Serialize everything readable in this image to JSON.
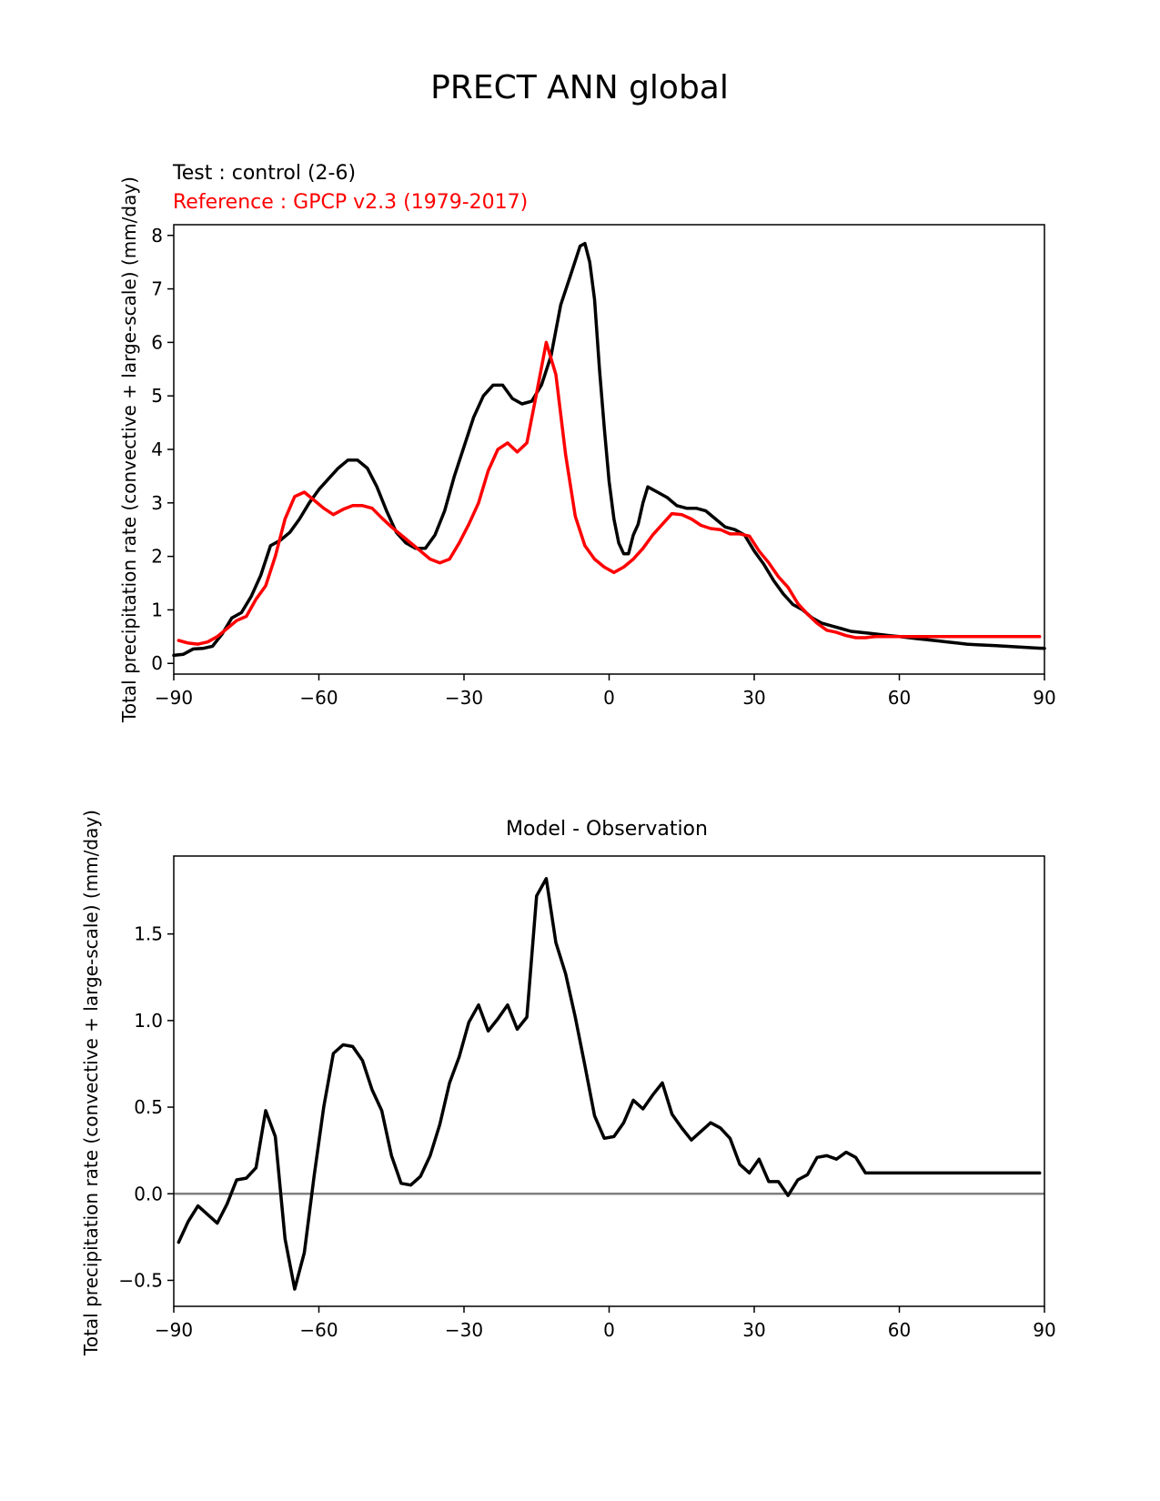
{
  "title": "PRECT ANN global",
  "colors": {
    "test": "#000000",
    "reference": "#ff0000",
    "zero_line": "#808080"
  },
  "chart_data": [
    {
      "type": "line",
      "subtitle_test": "Test : control (2-6)",
      "subtitle_reference": "Reference : GPCP v2.3 (1979-2017)",
      "xlabel": "",
      "ylabel": "Total precipitation rate (convective + large-scale) (mm/day)",
      "xlim": [
        -90,
        90
      ],
      "ylim": [
        -0.2,
        8.2
      ],
      "xticks": [
        -90,
        -60,
        -30,
        0,
        30,
        60,
        90
      ],
      "xtick_labels": [
        "−90",
        "−60",
        "−30",
        "0",
        "30",
        "60",
        "90"
      ],
      "yticks": [
        0,
        1,
        2,
        3,
        4,
        5,
        6,
        7,
        8
      ],
      "ytick_labels": [
        "0",
        "1",
        "2",
        "3",
        "4",
        "5",
        "6",
        "7",
        "8"
      ],
      "grid": false,
      "series": [
        {
          "name": "Test : control (2-6)",
          "color": "#000000",
          "x": [
            -90,
            -88,
            -86,
            -84,
            -82,
            -80,
            -78,
            -76,
            -74,
            -72,
            -70,
            -68,
            -66,
            -64,
            -62,
            -60,
            -58,
            -56,
            -54,
            -52,
            -50,
            -48,
            -46,
            -44,
            -42,
            -40,
            -38,
            -36,
            -34,
            -32,
            -30,
            -28,
            -26,
            -24,
            -22,
            -20,
            -18,
            -16,
            -14,
            -12,
            -10,
            -8,
            -6,
            -5,
            -4,
            -3,
            -2,
            -1,
            0,
            1,
            2,
            3,
            4,
            5,
            6,
            7,
            8,
            10,
            12,
            14,
            16,
            18,
            20,
            22,
            24,
            26,
            28,
            30,
            32,
            34,
            36,
            38,
            40,
            42,
            44,
            46,
            48,
            50,
            52,
            54,
            56,
            58,
            60,
            62,
            64,
            66,
            68,
            70,
            72,
            74,
            76,
            78,
            80,
            82,
            84,
            86,
            88,
            90
          ],
          "y": [
            0.15,
            0.17,
            0.27,
            0.28,
            0.32,
            0.55,
            0.85,
            0.95,
            1.25,
            1.65,
            2.2,
            2.3,
            2.45,
            2.7,
            3.0,
            3.25,
            3.45,
            3.65,
            3.8,
            3.8,
            3.65,
            3.3,
            2.85,
            2.45,
            2.25,
            2.15,
            2.15,
            2.4,
            2.85,
            3.5,
            4.05,
            4.6,
            5.0,
            5.2,
            5.2,
            4.95,
            4.85,
            4.9,
            5.2,
            5.75,
            6.7,
            7.25,
            7.8,
            7.85,
            7.5,
            6.8,
            5.5,
            4.4,
            3.4,
            2.7,
            2.25,
            2.05,
            2.05,
            2.4,
            2.6,
            3.0,
            3.3,
            3.2,
            3.1,
            2.95,
            2.9,
            2.9,
            2.85,
            2.7,
            2.55,
            2.5,
            2.4,
            2.1,
            1.85,
            1.55,
            1.3,
            1.1,
            1.0,
            0.85,
            0.75,
            0.7,
            0.65,
            0.6,
            0.58,
            0.56,
            0.54,
            0.52,
            0.5,
            0.48,
            0.46,
            0.44,
            0.42,
            0.4,
            0.38,
            0.36,
            0.35,
            0.34,
            0.33,
            0.32,
            0.31,
            0.3,
            0.29,
            0.28
          ]
        },
        {
          "name": "Reference : GPCP v2.3 (1979-2017)",
          "color": "#ff0000",
          "x": [
            -89,
            -87,
            -85,
            -83,
            -81,
            -79,
            -77,
            -75,
            -73,
            -71,
            -69,
            -67,
            -65,
            -63,
            -61,
            -59,
            -57,
            -55,
            -53,
            -51,
            -49,
            -47,
            -45,
            -43,
            -41,
            -39,
            -37,
            -35,
            -33,
            -31,
            -29,
            -27,
            -25,
            -23,
            -21,
            -19,
            -17,
            -15,
            -13,
            -11,
            -9,
            -7,
            -5,
            -3,
            -1,
            1,
            3,
            5,
            7,
            9,
            11,
            13,
            15,
            17,
            19,
            21,
            23,
            25,
            27,
            29,
            31,
            33,
            35,
            37,
            39,
            41,
            43,
            45,
            47,
            49,
            51,
            53,
            55,
            57,
            59,
            61,
            63,
            65,
            67,
            69,
            71,
            73,
            75,
            77,
            79,
            81,
            83,
            85,
            87,
            89
          ],
          "y": [
            0.43,
            0.38,
            0.36,
            0.4,
            0.5,
            0.65,
            0.8,
            0.88,
            1.2,
            1.45,
            2.0,
            2.7,
            3.12,
            3.2,
            3.05,
            2.9,
            2.78,
            2.88,
            2.95,
            2.95,
            2.9,
            2.72,
            2.55,
            2.4,
            2.25,
            2.1,
            1.95,
            1.88,
            1.95,
            2.25,
            2.6,
            3.0,
            3.6,
            4.0,
            4.12,
            3.95,
            4.12,
            5.05,
            6.0,
            5.4,
            3.9,
            2.75,
            2.2,
            1.95,
            1.8,
            1.7,
            1.8,
            1.95,
            2.15,
            2.4,
            2.6,
            2.8,
            2.78,
            2.7,
            2.58,
            2.52,
            2.5,
            2.42,
            2.42,
            2.38,
            2.1,
            1.88,
            1.62,
            1.42,
            1.12,
            0.92,
            0.75,
            0.62,
            0.58,
            0.52,
            0.48,
            0.48,
            0.5,
            0.5,
            0.5,
            0.5,
            0.5,
            0.5,
            0.5,
            0.5,
            0.5,
            0.5,
            0.5,
            0.5,
            0.5,
            0.5,
            0.5,
            0.5,
            0.5,
            0.5
          ]
        }
      ]
    },
    {
      "type": "line",
      "title": "Model - Observation",
      "xlabel": "",
      "ylabel": "Total precipitation rate (convective + large-scale) (mm/day)",
      "xlim": [
        -90,
        90
      ],
      "ylim": [
        -0.65,
        1.95
      ],
      "xticks": [
        -90,
        -60,
        -30,
        0,
        30,
        60,
        90
      ],
      "xtick_labels": [
        "−90",
        "−60",
        "−30",
        "0",
        "30",
        "60",
        "90"
      ],
      "yticks": [
        -0.5,
        0.0,
        0.5,
        1.0,
        1.5
      ],
      "ytick_labels": [
        "−0.5",
        "0.0",
        "0.5",
        "1.0",
        "1.5"
      ],
      "zero_line": 0,
      "grid": false,
      "series": [
        {
          "color": "#000000",
          "x": [
            -89,
            -87,
            -85,
            -83,
            -81,
            -79,
            -77,
            -75,
            -73,
            -71,
            -69,
            -67,
            -65,
            -63,
            -61,
            -59,
            -57,
            -55,
            -53,
            -51,
            -49,
            -47,
            -45,
            -43,
            -41,
            -39,
            -37,
            -35,
            -33,
            -31,
            -29,
            -27,
            -25,
            -23,
            -21,
            -19,
            -17,
            -15,
            -13,
            -11,
            -9,
            -7,
            -5,
            -3,
            -1,
            1,
            3,
            5,
            7,
            9,
            11,
            13,
            15,
            17,
            19,
            21,
            23,
            25,
            27,
            29,
            31,
            33,
            35,
            37,
            39,
            41,
            43,
            45,
            47,
            49,
            51,
            53,
            55,
            57,
            59,
            61,
            63,
            65,
            67,
            69,
            71,
            73,
            75,
            77,
            79,
            81,
            83,
            85,
            87,
            89
          ],
          "y": [
            -0.28,
            -0.16,
            -0.07,
            -0.12,
            -0.17,
            -0.06,
            0.08,
            0.09,
            0.15,
            0.48,
            0.33,
            -0.26,
            -0.55,
            -0.34,
            0.1,
            0.5,
            0.81,
            0.86,
            0.85,
            0.77,
            0.6,
            0.48,
            0.22,
            0.06,
            0.05,
            0.1,
            0.22,
            0.4,
            0.64,
            0.79,
            0.99,
            1.09,
            0.94,
            1.01,
            1.09,
            0.95,
            1.02,
            1.72,
            1.82,
            1.45,
            1.27,
            1.02,
            0.74,
            0.45,
            0.32,
            0.33,
            0.41,
            0.54,
            0.49,
            0.57,
            0.64,
            0.46,
            0.38,
            0.31,
            0.36,
            0.41,
            0.38,
            0.32,
            0.17,
            0.12,
            0.2,
            0.07,
            0.07,
            -0.01,
            0.08,
            0.11,
            0.21,
            0.22,
            0.2,
            0.24,
            0.21,
            0.12,
            0.12,
            0.12,
            0.12,
            0.12,
            0.12,
            0.12,
            0.12,
            0.12,
            0.12,
            0.12,
            0.12,
            0.12,
            0.12,
            0.12,
            0.12,
            0.12,
            0.12,
            0.12
          ]
        }
      ]
    }
  ]
}
